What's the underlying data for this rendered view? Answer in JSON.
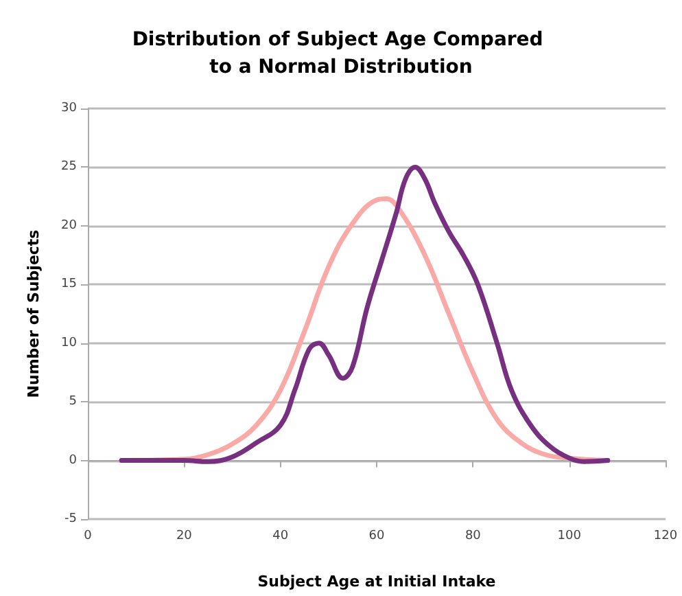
{
  "chart_data": {
    "type": "line",
    "title": "Distribution of Subject Age Compared to a Normal Distribution",
    "xlabel": "Subject Age at Initial Intake",
    "ylabel": "Number of Subjects",
    "xlim": [
      0,
      120
    ],
    "xticks": [
      0,
      20,
      40,
      60,
      80,
      100,
      120
    ],
    "ylim": [
      -5,
      30
    ],
    "yticks": [
      -5,
      0,
      5,
      10,
      15,
      20,
      25,
      30
    ],
    "grid": "y",
    "marker": "none",
    "line_style": "solid",
    "series": [
      {
        "color": "#f9a9a6",
        "x": [
          7,
          20,
          25,
          30,
          35,
          40,
          45,
          50,
          55,
          60,
          62,
          65,
          70,
          75,
          80,
          85,
          90,
          95,
          100,
          108
        ],
        "values": [
          0,
          0.1,
          0.5,
          1.4,
          3,
          6,
          11,
          16.5,
          20.2,
          22.2,
          22.3,
          21.2,
          17.5,
          12.5,
          7.5,
          3.5,
          1.5,
          0.5,
          0.2,
          0
        ]
      },
      {
        "color": "#76307f",
        "x": [
          7,
          20,
          25,
          30,
          35,
          40,
          43,
          46,
          48,
          50,
          53,
          55,
          58,
          61,
          64,
          66,
          68,
          70,
          72,
          75,
          78,
          81,
          85,
          88,
          92,
          96,
          100,
          103,
          108
        ],
        "values": [
          0,
          0,
          -0.1,
          0.3,
          1.5,
          3,
          6,
          9.5,
          10,
          9,
          7,
          8,
          13,
          17,
          21,
          24,
          25,
          24,
          22,
          19.5,
          17.5,
          15,
          10,
          6,
          3,
          1.2,
          0.2,
          -0.1,
          0
        ]
      }
    ]
  }
}
